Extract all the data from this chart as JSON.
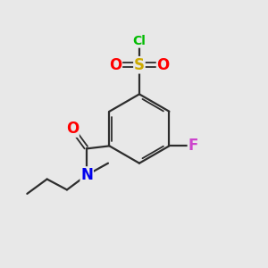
{
  "background_color": "#e8e8e8",
  "bond_color": "#2d2d2d",
  "atom_colors": {
    "Cl": "#00bb00",
    "S": "#ccaa00",
    "O": "#ff0000",
    "N": "#0000ee",
    "F": "#cc44cc",
    "C": "#2d2d2d"
  },
  "figsize": [
    3.0,
    3.0
  ],
  "dpi": 100
}
